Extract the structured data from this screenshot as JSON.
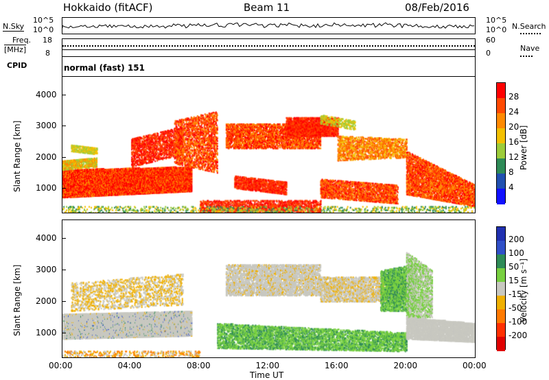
{
  "header": {
    "radar": "Hokkaido (fitACF)",
    "beam": "Beam 11",
    "date": "08/Feb/2016"
  },
  "top_panels": {
    "nsky_label": "N.Sky",
    "nsky_ticks": [
      "10^5",
      "10^0"
    ],
    "nsearch_label": "N.Search",
    "nsearch_ticks": [
      "10^5",
      "10^0"
    ],
    "freq_label": "Freq.",
    "freq_unit": "[MHz]",
    "freq_ticks": [
      "18",
      "8"
    ],
    "nave_label": "Nave",
    "nave_ticks": [
      "60",
      "0"
    ],
    "cpid_label": "CPID",
    "cpid_text": "normal (fast) 151"
  },
  "chart_data": [
    {
      "type": "heatmap",
      "name": "power",
      "ylabel": "Slant Range [km]",
      "yticks": [
        "4000",
        "3000",
        "2000",
        "1000"
      ],
      "ylim": [
        180,
        4600
      ],
      "xlim_hours": [
        0,
        24
      ],
      "colorbar_label": "Power [dB]",
      "colorbar_ticks": [
        "28",
        "24",
        "20",
        "16",
        "12",
        "8",
        "4"
      ],
      "colorbar_colors": [
        "#ff0000",
        "#ff4a00",
        "#ff8a00",
        "#f3c000",
        "#9ccc3a",
        "#2e8b57",
        "#2050b0",
        "#1010ff"
      ]
    },
    {
      "type": "heatmap",
      "name": "velocity",
      "ylabel": "Slant Range [km]",
      "yticks": [
        "4000",
        "3000",
        "2000",
        "1000"
      ],
      "ylim": [
        180,
        4600
      ],
      "xlim_hours": [
        0,
        24
      ],
      "xticks": [
        "00:00",
        "04:00",
        "08:00",
        "12:00",
        "16:00",
        "20:00",
        "00:00"
      ],
      "xlabel": "Time UT",
      "colorbar_label": "Velocity [m s⁻¹]",
      "colorbar_ticks": [
        "200",
        "100",
        "50",
        "15",
        "-15",
        "-50",
        "-100",
        "-200"
      ],
      "colorbar_colors": [
        "#2030b0",
        "#3050c8",
        "#2e8b57",
        "#78d040",
        "#c8c8c0",
        "#f0b000",
        "#ff7a00",
        "#ff3000",
        "#e00000"
      ]
    }
  ]
}
